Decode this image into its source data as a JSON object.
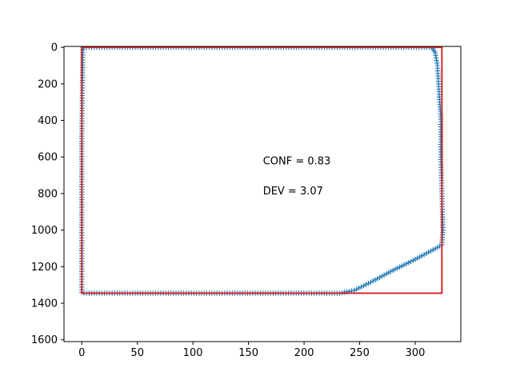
{
  "chart_data": {
    "type": "scatter",
    "title": "",
    "xlabel": "",
    "ylabel": "",
    "xlim": [
      -16,
      341
    ],
    "ylim": [
      1610,
      -5
    ],
    "y_inverted": true,
    "grid": false,
    "xticks": [
      0,
      50,
      100,
      150,
      200,
      250,
      300
    ],
    "yticks": [
      0,
      200,
      400,
      600,
      800,
      1000,
      1200,
      1400,
      1600
    ],
    "xtick_labels": [
      "0",
      "50",
      "100",
      "150",
      "200",
      "250",
      "300"
    ],
    "ytick_labels": [
      "0",
      "200",
      "400",
      "600",
      "800",
      "1000",
      "1200",
      "1400",
      "1600"
    ],
    "series": [
      {
        "kind": "markers",
        "marker": "+",
        "color": "#1f77b4",
        "outline": [
          [
            1,
            0
          ],
          [
            2,
            0
          ],
          [
            315,
            0
          ],
          [
            318,
            30
          ],
          [
            320,
            100
          ],
          [
            321,
            200
          ],
          [
            322,
            300
          ],
          [
            323,
            380
          ],
          [
            323,
            600
          ],
          [
            324,
            800
          ],
          [
            325,
            1000
          ],
          [
            324,
            1080
          ],
          [
            320,
            1095
          ],
          [
            300,
            1160
          ],
          [
            280,
            1220
          ],
          [
            260,
            1285
          ],
          [
            245,
            1330
          ],
          [
            232,
            1345
          ],
          [
            2,
            1345
          ],
          [
            0,
            1340
          ],
          [
            0,
            1000
          ],
          [
            0,
            500
          ],
          [
            1,
            0
          ]
        ]
      },
      {
        "kind": "line",
        "color": "#d62728",
        "points": [
          [
            0,
            0
          ],
          [
            324,
            0
          ],
          [
            324,
            1345
          ],
          [
            0,
            1345
          ],
          [
            0,
            0
          ]
        ]
      }
    ],
    "annotations": [
      {
        "text": "CONF = 0.83",
        "x": 163,
        "y": 620
      },
      {
        "text": "DEV = 3.07",
        "x": 163,
        "y": 785
      }
    ]
  }
}
